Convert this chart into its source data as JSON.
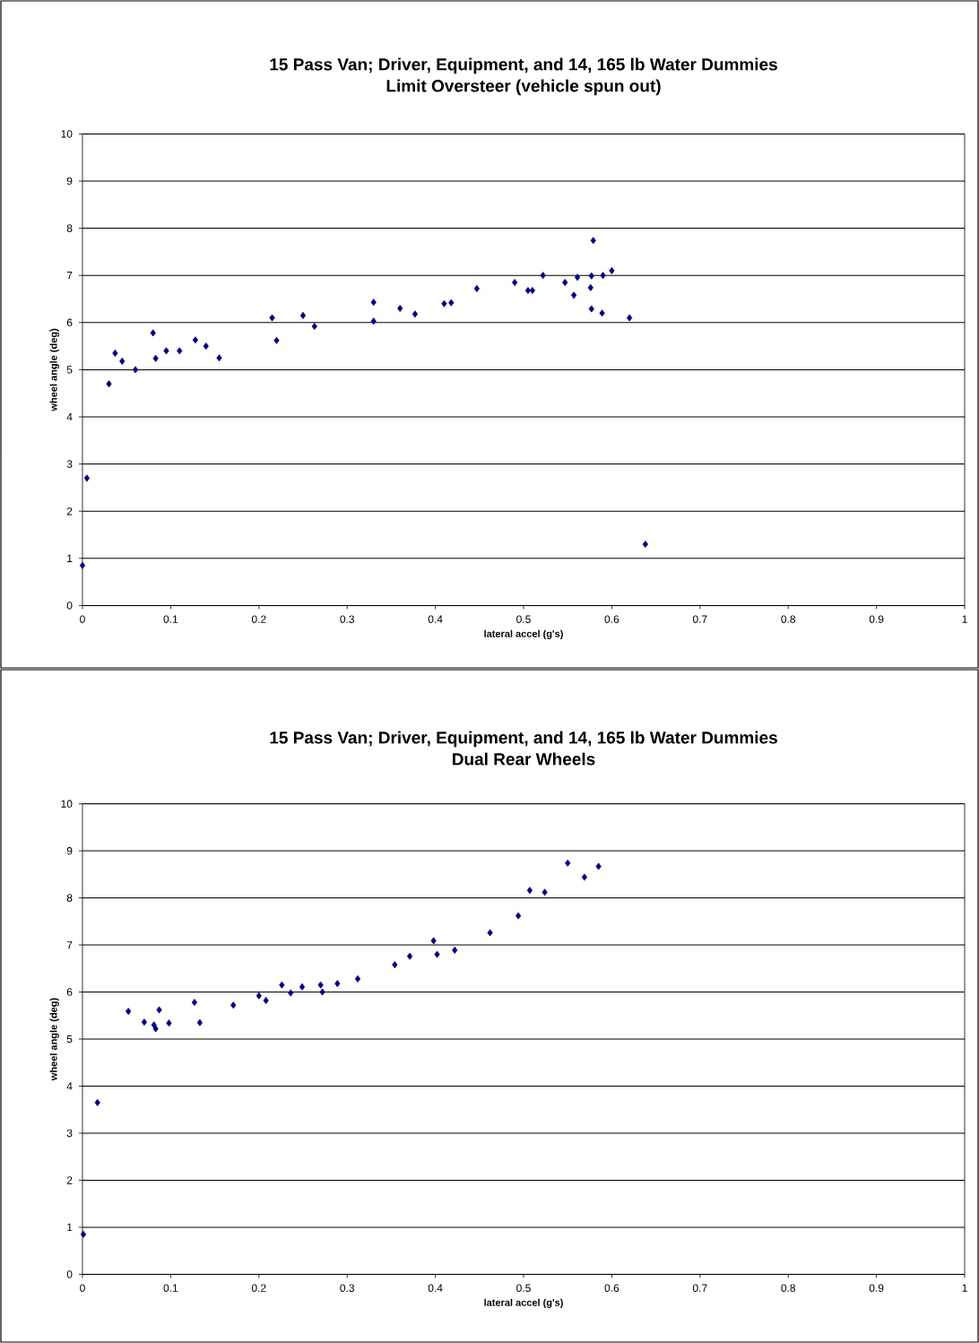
{
  "chart_data": [
    {
      "type": "scatter",
      "title": "15 Pass Van; Driver, Equipment, and 14, 165 lb Water Dummies",
      "subtitle": "Limit Oversteer (vehicle spun out)",
      "xlabel": "lateral accel (g's)",
      "ylabel": "wheel angle (deg)",
      "marker": "diamond",
      "grid": "y",
      "xlim": [
        0,
        1
      ],
      "ylim": [
        0,
        10
      ],
      "xticks": [
        0,
        0.1,
        0.2,
        0.3,
        0.4,
        0.5,
        0.6,
        0.7,
        0.8,
        0.9,
        1
      ],
      "yticks": [
        0,
        1,
        2,
        3,
        4,
        5,
        6,
        7,
        8,
        9,
        10
      ],
      "series": [
        {
          "color": "#000080",
          "x": [
            0,
            0.005,
            0.03,
            0.037,
            0.045,
            0.06,
            0.08,
            0.083,
            0.095,
            0.11,
            0.128,
            0.14,
            0.155,
            0.215,
            0.22,
            0.25,
            0.263,
            0.33,
            0.33,
            0.36,
            0.377,
            0.41,
            0.418,
            0.447,
            0.49,
            0.505,
            0.51,
            0.522,
            0.547,
            0.557,
            0.561,
            0.577,
            0.576,
            0.579,
            0.577,
            0.589,
            0.59,
            0.6,
            0.62,
            0.638
          ],
          "values": [
            0.85,
            2.7,
            4.7,
            5.35,
            5.18,
            5.0,
            5.78,
            5.24,
            5.4,
            5.4,
            5.63,
            5.5,
            5.25,
            6.1,
            5.62,
            6.15,
            5.92,
            6.43,
            6.03,
            6.3,
            6.18,
            6.4,
            6.42,
            6.72,
            6.85,
            6.68,
            6.68,
            7.0,
            6.85,
            6.58,
            6.96,
            6.99,
            6.74,
            7.74,
            6.29,
            6.2,
            7.0,
            7.1,
            6.1,
            1.3
          ]
        }
      ]
    },
    {
      "type": "scatter",
      "title": "15 Pass Van; Driver, Equipment, and 14, 165 lb Water Dummies",
      "subtitle": "Dual Rear Wheels",
      "xlabel": "lateral accel (g's)",
      "ylabel": "wheel angle (deg)",
      "marker": "diamond",
      "grid": "y",
      "xlim": [
        0,
        1
      ],
      "ylim": [
        0,
        10
      ],
      "xticks": [
        0,
        0.1,
        0.2,
        0.3,
        0.4,
        0.5,
        0.6,
        0.7,
        0.8,
        0.9,
        1
      ],
      "yticks": [
        0,
        1,
        2,
        3,
        4,
        5,
        6,
        7,
        8,
        9,
        10
      ],
      "series": [
        {
          "color": "#000080",
          "x": [
            0.001,
            0.017,
            0.052,
            0.07,
            0.081,
            0.083,
            0.087,
            0.098,
            0.127,
            0.133,
            0.171,
            0.2,
            0.208,
            0.226,
            0.236,
            0.249,
            0.27,
            0.272,
            0.289,
            0.312,
            0.354,
            0.371,
            0.398,
            0.402,
            0.422,
            0.462,
            0.494,
            0.507,
            0.524,
            0.55,
            0.569,
            0.585
          ],
          "values": [
            0.85,
            3.65,
            5.59,
            5.36,
            5.3,
            5.22,
            5.62,
            5.34,
            5.78,
            5.35,
            5.72,
            5.92,
            5.82,
            6.15,
            5.98,
            6.11,
            6.15,
            6.0,
            6.18,
            6.28,
            6.58,
            6.76,
            7.09,
            6.8,
            6.89,
            7.26,
            7.62,
            8.16,
            8.12,
            8.74,
            8.44,
            8.67
          ]
        }
      ]
    }
  ]
}
